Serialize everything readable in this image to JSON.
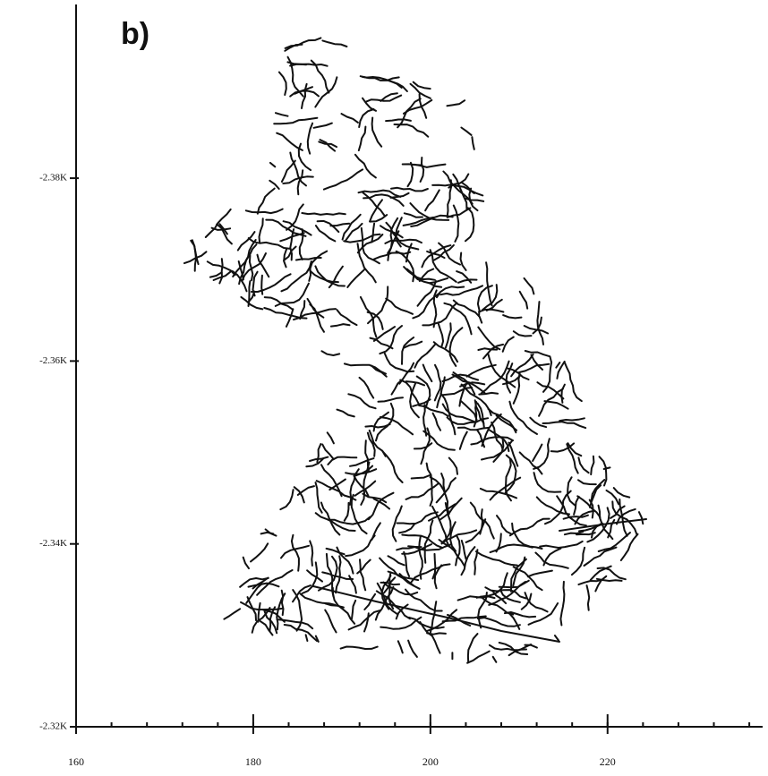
{
  "chart_data": {
    "type": "network",
    "panel_label": "b)",
    "xlim": [
      160,
      237
    ],
    "xticks": [
      160,
      180,
      200,
      220
    ],
    "ylim": [
      -2320,
      -2399
    ],
    "yticks": [
      {
        "value": -2380,
        "label": "-2.38K"
      },
      {
        "value": -2360,
        "label": "-2.36K"
      },
      {
        "value": -2340,
        "label": "-2.34K"
      },
      {
        "value": -2320,
        "label": "-2.32K"
      }
    ]
  }
}
